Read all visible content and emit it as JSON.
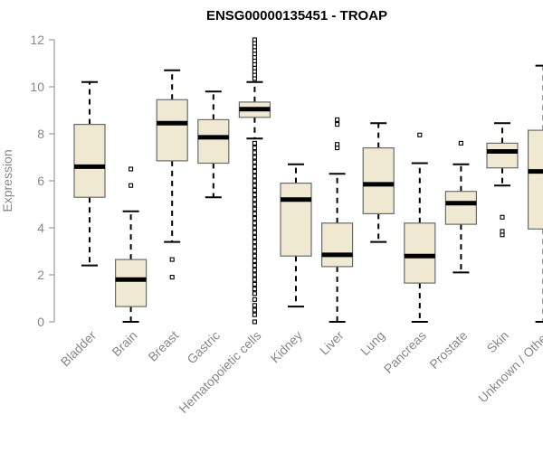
{
  "colors": {
    "box_fill": "#efe9d2",
    "box_stroke": "#6b6b6b",
    "median": "#000000",
    "axis": "#888888",
    "text": "#888888",
    "whisker": "#000000"
  },
  "chart_data": {
    "type": "boxplot",
    "title": "ENSG00000135451 - TROAP",
    "xlabel": "",
    "ylabel": "Expression",
    "ylim": [
      0,
      12
    ],
    "yticks": [
      0,
      2,
      4,
      6,
      8,
      10,
      12
    ],
    "categories": [
      "Bladder",
      "Brain",
      "Breast",
      "Gastric",
      "Hematopoietic cells",
      "Kidney",
      "Liver",
      "Lung",
      "Pancreas",
      "Prostate",
      "Skin",
      "Unknown / Other"
    ],
    "boxes": [
      {
        "name": "Bladder",
        "whisker_low": 2.4,
        "q1": 5.3,
        "median": 6.6,
        "q3": 8.4,
        "whisker_high": 10.2,
        "outliers": []
      },
      {
        "name": "Brain",
        "whisker_low": 0.0,
        "q1": 0.65,
        "median": 1.8,
        "q3": 2.65,
        "whisker_high": 4.7,
        "outliers": [
          5.8,
          6.5
        ]
      },
      {
        "name": "Breast",
        "whisker_low": 3.4,
        "q1": 6.85,
        "median": 8.45,
        "q3": 9.45,
        "whisker_high": 10.7,
        "outliers": [
          1.9,
          2.65
        ]
      },
      {
        "name": "Gastric",
        "whisker_low": 5.3,
        "q1": 6.75,
        "median": 7.85,
        "q3": 8.6,
        "whisker_high": 9.8,
        "outliers": []
      },
      {
        "name": "Hematopoietic cells",
        "whisker_low": 7.8,
        "q1": 8.7,
        "median": 9.05,
        "q3": 9.35,
        "whisker_high": 10.2,
        "outliers": [
          0.0,
          0.3,
          0.5,
          0.7,
          0.95,
          1.2,
          1.4,
          1.6,
          1.8,
          2.0,
          2.2,
          2.4,
          2.6,
          2.8,
          3.0,
          3.2,
          3.4,
          3.6,
          3.8,
          4.0,
          4.2,
          4.4,
          4.6,
          4.8,
          5.0,
          5.2,
          5.4,
          5.6,
          5.8,
          6.0,
          6.2,
          6.4,
          6.6,
          6.8,
          7.0,
          7.2,
          7.4,
          7.6,
          10.35,
          10.5,
          10.65,
          10.8,
          10.95,
          11.1,
          11.25,
          11.4,
          11.55,
          11.7,
          11.85,
          12.0
        ]
      },
      {
        "name": "Kidney",
        "whisker_low": 0.65,
        "q1": 2.8,
        "median": 5.2,
        "q3": 5.9,
        "whisker_high": 6.7,
        "outliers": []
      },
      {
        "name": "Liver",
        "whisker_low": 0.0,
        "q1": 2.35,
        "median": 2.85,
        "q3": 4.2,
        "whisker_high": 6.3,
        "outliers": [
          7.4,
          7.55,
          8.4,
          8.6
        ]
      },
      {
        "name": "Lung",
        "whisker_low": 3.4,
        "q1": 4.6,
        "median": 5.85,
        "q3": 7.4,
        "whisker_high": 8.45,
        "outliers": []
      },
      {
        "name": "Pancreas",
        "whisker_low": 0.0,
        "q1": 1.65,
        "median": 2.8,
        "q3": 4.2,
        "whisker_high": 6.75,
        "outliers": [
          7.95
        ]
      },
      {
        "name": "Prostate",
        "whisker_low": 2.1,
        "q1": 4.15,
        "median": 5.05,
        "q3": 5.55,
        "whisker_high": 6.7,
        "outliers": [
          7.6
        ]
      },
      {
        "name": "Skin",
        "whisker_low": 5.8,
        "q1": 6.55,
        "median": 7.25,
        "q3": 7.6,
        "whisker_high": 8.45,
        "outliers": [
          3.7,
          3.85,
          4.45
        ]
      },
      {
        "name": "Unknown / Other",
        "whisker_low": 0.0,
        "q1": 3.95,
        "median": 6.4,
        "q3": 8.15,
        "whisker_high": 10.9,
        "outliers": []
      }
    ]
  }
}
